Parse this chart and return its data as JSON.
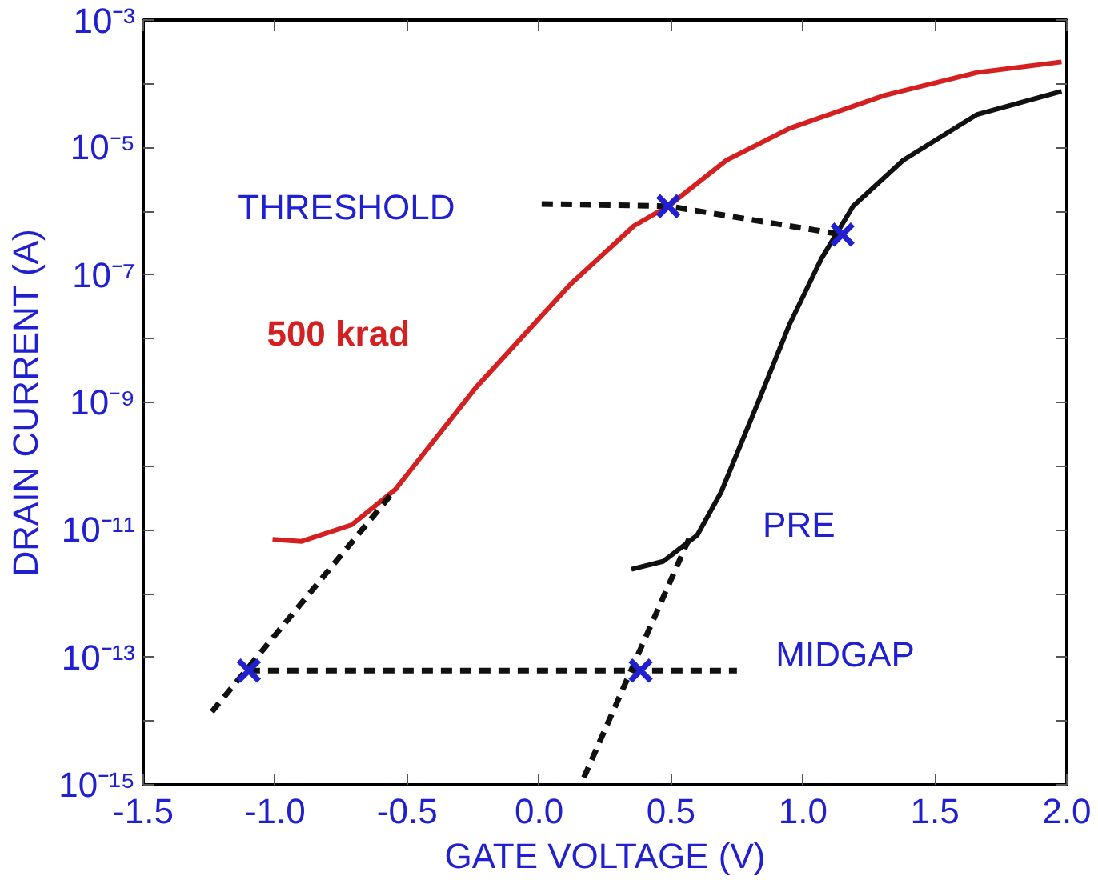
{
  "chart_data": {
    "type": "line",
    "xlabel": "GATE VOLTAGE (V)",
    "ylabel": "DRAIN CURRENT (A)",
    "log": "y",
    "grid": false,
    "xlim": [
      -1.5,
      2.0
    ],
    "ylim": [
      1e-15,
      0.001
    ],
    "xticks": [
      -1.5,
      {
        "value": -1,
        "label": "-1.0"
      },
      -0.5,
      {
        "value": 0,
        "label": "0.0"
      },
      0.5,
      {
        "value": 1,
        "label": "1.0"
      },
      1.5,
      {
        "value": 2,
        "label": "2.0"
      }
    ],
    "yticks": [
      {
        "value": 1e-15,
        "label": "10⁻¹⁵"
      },
      {
        "value": 1e-14,
        "label": null
      },
      {
        "value": 1e-13,
        "label": "10⁻¹³"
      },
      {
        "value": 1e-12,
        "label": null
      },
      {
        "value": 1e-11,
        "label": "10⁻¹¹"
      },
      {
        "value": 1e-10,
        "label": null
      },
      {
        "value": 1e-09,
        "label": "10⁻⁹"
      },
      {
        "value": 1e-08,
        "label": null
      },
      {
        "value": 1e-07,
        "label": "10⁻⁷"
      },
      {
        "value": 1e-06,
        "label": null
      },
      {
        "value": 1e-05,
        "label": "10⁻⁵"
      },
      {
        "value": 0.0001,
        "label": null
      },
      {
        "value": 0.001,
        "label": "10⁻³"
      }
    ],
    "series": [
      {
        "name": "500 krad",
        "color": "#d42020",
        "line_style": "solid",
        "x": [
          -1.01,
          -0.9,
          -0.71,
          -0.545,
          -0.24,
          0.12,
          0.36,
          0.49,
          0.71,
          0.95,
          1.31,
          1.66,
          1.98
        ],
        "values": [
          7.1e-12,
          6.6e-12,
          1.2e-11,
          4.3e-11,
          1.7e-09,
          7.2e-08,
          5.9e-07,
          1.2e-06,
          6.3e-06,
          2e-05,
          6.6e-05,
          0.00015,
          0.00022
        ]
      },
      {
        "color": "#111111",
        "line_style": "solid",
        "x": [
          0.35,
          0.47,
          0.6,
          0.69,
          0.83,
          0.95,
          1.07,
          1.19,
          1.38,
          1.66,
          1.98
        ],
        "values": [
          2.4e-12,
          3.2e-12,
          8.3e-12,
          3.9e-11,
          1e-09,
          1.7e-08,
          1.8e-07,
          1.2e-06,
          6.3e-06,
          3.3e-05,
          7.6e-05
        ]
      },
      {
        "color": "#111111",
        "line_style": "dashed",
        "x": [
          0.01,
          0.49,
          1.15
        ],
        "values": [
          1.3e-06,
          1.2e-06,
          4.3e-07
        ]
      },
      {
        "color": "#111111",
        "line_style": "dashed",
        "x": [
          -1.1,
          0.75
        ],
        "values": [
          6.2e-14,
          6.2e-14
        ]
      },
      {
        "color": "#111111",
        "line_style": "dashed",
        "x": [
          -1.24,
          -0.545
        ],
        "values": [
          1.4e-14,
          4.3e-11
        ]
      },
      {
        "color": "#111111",
        "line_style": "dashed",
        "x": [
          0.17,
          0.58
        ],
        "values": [
          1.3e-15,
          9.3e-12
        ]
      },
      {
        "type": "scatter",
        "marker": "cross",
        "color": "#2020d0",
        "x": [
          0.49,
          1.15,
          -1.1,
          0.385
        ],
        "values": [
          1.2e-06,
          4.3e-07,
          6.2e-14,
          6.2e-14
        ]
      }
    ],
    "annotations": [
      "THRESHOLD",
      "PRE",
      "MIDGAP"
    ]
  }
}
